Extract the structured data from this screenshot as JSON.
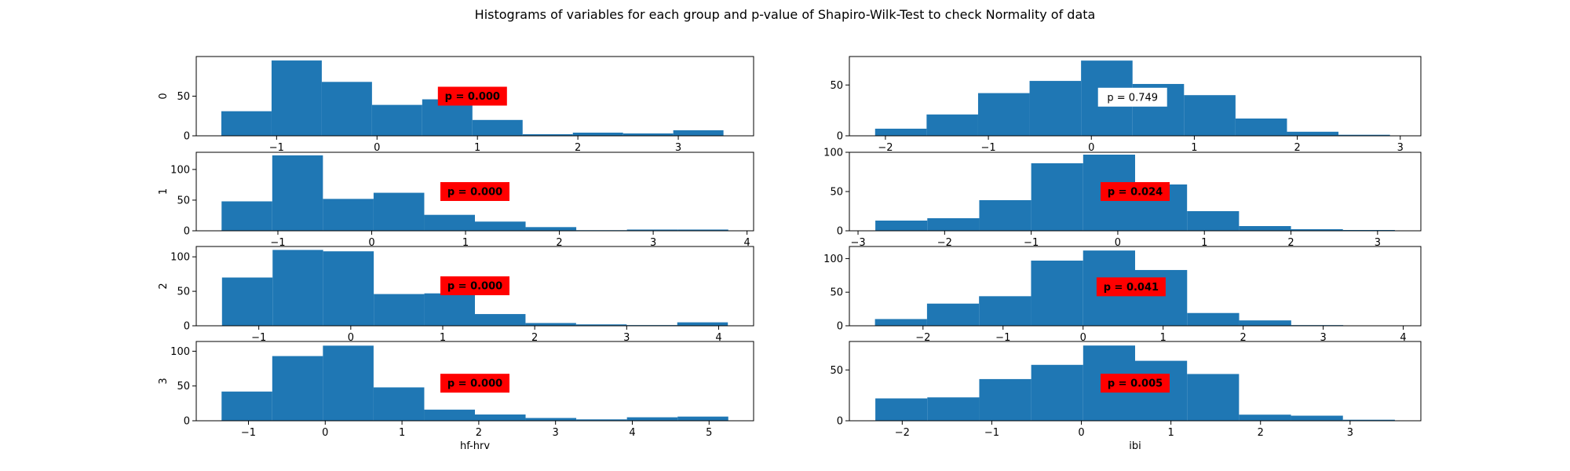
{
  "figure": {
    "title": "Histograms of variables for each group and p-value of Shapiro-Wilk-Test to check Normality of data",
    "colors": {
      "bar": "#1f77b4",
      "significant_box": "#ff0000",
      "normal_box": "#ffffff"
    }
  },
  "chart_data": [
    {
      "type": "bar",
      "variable": "hf-hrv",
      "group": "0",
      "ylabel": "0",
      "xlabel": "",
      "bin_edges": [
        -1.55,
        -1.05,
        -0.55,
        -0.05,
        0.45,
        0.95,
        1.45,
        1.95,
        2.45,
        2.95,
        3.45
      ],
      "counts": [
        31,
        95,
        68,
        39,
        46,
        20,
        2,
        4,
        3,
        7
      ],
      "xlim": [
        -1.8,
        3.75
      ],
      "ylim": [
        0,
        100
      ],
      "xticks": [
        -1,
        0,
        1,
        2,
        3
      ],
      "yticks": [
        0,
        50
      ],
      "annotation": {
        "text": "p = 0.000",
        "significant": true,
        "x": 0.95,
        "y": 50
      }
    },
    {
      "type": "bar",
      "variable": "ibi",
      "group": "0",
      "ylabel": "",
      "xlabel": "",
      "bin_edges": [
        -2.1,
        -1.6,
        -1.1,
        -0.6,
        -0.1,
        0.4,
        0.9,
        1.4,
        1.9,
        2.4,
        2.9
      ],
      "counts": [
        7,
        21,
        42,
        54,
        74,
        51,
        40,
        17,
        4,
        1
      ],
      "xlim": [
        -2.35,
        3.2
      ],
      "ylim": [
        0,
        78
      ],
      "xticks": [
        -2,
        -1,
        0,
        1,
        2,
        3
      ],
      "yticks": [
        0,
        50
      ],
      "annotation": {
        "text": "p = 0.749",
        "significant": false,
        "x": 0.4,
        "y": 38
      }
    },
    {
      "type": "bar",
      "variable": "hf-hrv",
      "group": "1",
      "ylabel": "1",
      "xlabel": "",
      "bin_edges": [
        -1.6,
        -1.06,
        -0.52,
        0.02,
        0.56,
        1.1,
        1.64,
        2.18,
        2.72,
        3.26,
        3.8
      ],
      "counts": [
        48,
        123,
        52,
        62,
        26,
        15,
        6,
        1,
        2,
        2
      ],
      "xlim": [
        -1.87,
        4.07
      ],
      "ylim": [
        0,
        128
      ],
      "xticks": [
        -1,
        0,
        1,
        2,
        3,
        4
      ],
      "yticks": [
        0,
        50,
        100
      ],
      "annotation": {
        "text": "p = 0.000",
        "significant": true,
        "x": 1.1,
        "y": 64
      }
    },
    {
      "type": "bar",
      "variable": "ibi",
      "group": "1",
      "ylabel": "",
      "xlabel": "",
      "bin_edges": [
        -2.8,
        -2.2,
        -1.6,
        -1.0,
        -0.4,
        0.2,
        0.8,
        1.4,
        2.0,
        2.6,
        3.2
      ],
      "counts": [
        13,
        16,
        39,
        86,
        97,
        59,
        25,
        6,
        2,
        1
      ],
      "xlim": [
        -3.1,
        3.5
      ],
      "ylim": [
        0,
        100
      ],
      "xticks": [
        -3,
        -2,
        -1,
        0,
        1,
        2,
        3
      ],
      "yticks": [
        0,
        50,
        100
      ],
      "annotation": {
        "text": "p = 0.024",
        "significant": true,
        "x": 0.2,
        "y": 50
      }
    },
    {
      "type": "bar",
      "variable": "hf-hrv",
      "group": "2",
      "ylabel": "2",
      "xlabel": "",
      "bin_edges": [
        -1.4,
        -0.85,
        -0.3,
        0.25,
        0.8,
        1.35,
        1.9,
        2.45,
        3.0,
        3.55,
        4.1
      ],
      "counts": [
        70,
        110,
        108,
        46,
        47,
        17,
        4,
        2,
        1,
        5
      ],
      "xlim": [
        -1.68,
        4.38
      ],
      "ylim": [
        0,
        115
      ],
      "xticks": [
        -1,
        0,
        1,
        2,
        3,
        4
      ],
      "yticks": [
        0,
        50,
        100
      ],
      "annotation": {
        "text": "p = 0.000",
        "significant": true,
        "x": 1.35,
        "y": 58
      }
    },
    {
      "type": "bar",
      "variable": "ibi",
      "group": "2",
      "ylabel": "",
      "xlabel": "",
      "bin_edges": [
        -2.6,
        -1.95,
        -1.3,
        -0.65,
        0.0,
        0.65,
        1.3,
        1.95,
        2.6,
        3.25,
        3.9
      ],
      "counts": [
        10,
        33,
        44,
        97,
        112,
        83,
        19,
        8,
        1,
        0
      ],
      "xlim": [
        -2.92,
        4.22
      ],
      "ylim": [
        0,
        118
      ],
      "xticks": [
        -2,
        -1,
        0,
        1,
        2,
        3,
        4
      ],
      "yticks": [
        0,
        50,
        100
      ],
      "annotation": {
        "text": "p = 0.041",
        "significant": true,
        "x": 0.6,
        "y": 58
      }
    },
    {
      "type": "bar",
      "variable": "hf-hrv",
      "group": "3",
      "ylabel": "3",
      "xlabel": "hf-hrv",
      "bin_edges": [
        -1.35,
        -0.69,
        -0.03,
        0.63,
        1.29,
        1.95,
        2.61,
        3.27,
        3.93,
        4.59,
        5.25
      ],
      "counts": [
        42,
        93,
        108,
        48,
        16,
        9,
        4,
        2,
        5,
        6
      ],
      "xlim": [
        -1.68,
        5.58
      ],
      "ylim": [
        0,
        114
      ],
      "xticks": [
        -1,
        0,
        1,
        2,
        3,
        4,
        5
      ],
      "yticks": [
        0,
        50,
        100
      ],
      "annotation": {
        "text": "p = 0.000",
        "significant": true,
        "x": 1.95,
        "y": 54
      }
    },
    {
      "type": "bar",
      "variable": "ibi",
      "group": "3",
      "ylabel": "",
      "xlabel": "ibi",
      "bin_edges": [
        -2.3,
        -1.72,
        -1.14,
        -0.56,
        0.02,
        0.6,
        1.18,
        1.76,
        2.34,
        2.92,
        3.5
      ],
      "counts": [
        22,
        23,
        41,
        55,
        74,
        59,
        46,
        6,
        5,
        1
      ],
      "xlim": [
        -2.59,
        3.79
      ],
      "ylim": [
        0,
        78
      ],
      "xticks": [
        -2,
        -1,
        0,
        1,
        2,
        3
      ],
      "yticks": [
        0,
        50
      ],
      "annotation": {
        "text": "p = 0.005",
        "significant": true,
        "x": 0.6,
        "y": 37
      }
    }
  ]
}
